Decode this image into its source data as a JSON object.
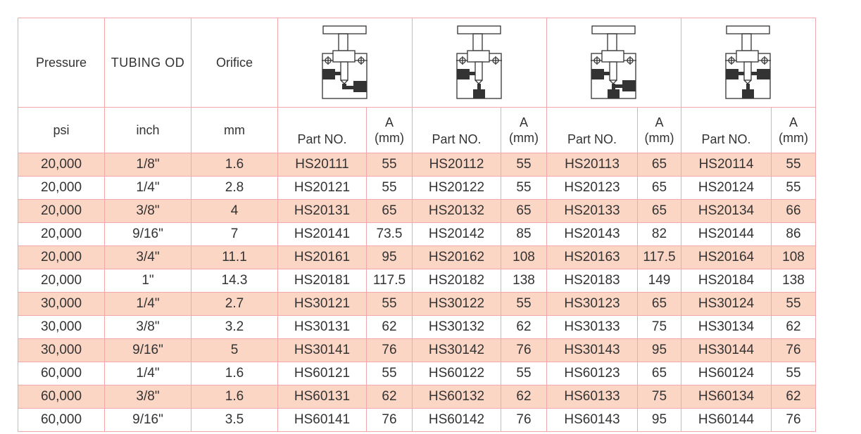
{
  "header": {
    "pressure": "Pressure",
    "tubing": "TUBING OD",
    "orifice": "Orifice",
    "part_no": "Part NO.",
    "a_label": "A",
    "a_unit": "(mm)",
    "units": [
      "psi",
      "inch",
      "mm"
    ]
  },
  "valve_icons": [
    "needle-valve-angle-pattern-icon",
    "needle-valve-straight-bottom-icon",
    "needle-valve-three-way-icon",
    "needle-valve-cross-pattern-icon"
  ],
  "colors": {
    "border": "#f3a7aa",
    "shaded_row": "#fcd6c5"
  },
  "rows": [
    [
      "20,000",
      "1/8\"",
      "1.6",
      "HS20111",
      "55",
      "HS20112",
      "55",
      "HS20113",
      "65",
      "HS20114",
      "55"
    ],
    [
      "20,000",
      "1/4\"",
      "2.8",
      "HS20121",
      "55",
      "HS20122",
      "55",
      "HS20123",
      "65",
      "HS20124",
      "55"
    ],
    [
      "20,000",
      "3/8\"",
      "4",
      "HS20131",
      "65",
      "HS20132",
      "65",
      "HS20133",
      "65",
      "HS20134",
      "66"
    ],
    [
      "20,000",
      "9/16\"",
      "7",
      "HS20141",
      "73.5",
      "HS20142",
      "85",
      "HS20143",
      "82",
      "HS20144",
      "86"
    ],
    [
      "20,000",
      "3/4\"",
      "11.1",
      "HS20161",
      "95",
      "HS20162",
      "108",
      "HS20163",
      "117.5",
      "HS20164",
      "108"
    ],
    [
      "20,000",
      "1\"",
      "14.3",
      "HS20181",
      "117.5",
      "HS20182",
      "138",
      "HS20183",
      "149",
      "HS20184",
      "138"
    ],
    [
      "30,000",
      "1/4\"",
      "2.7",
      "HS30121",
      "55",
      "HS30122",
      "55",
      "HS30123",
      "65",
      "HS30124",
      "55"
    ],
    [
      "30,000",
      "3/8\"",
      "3.2",
      "HS30131",
      "62",
      "HS30132",
      "62",
      "HS30133",
      "75",
      "HS30134",
      "62"
    ],
    [
      "30,000",
      "9/16\"",
      "5",
      "HS30141",
      "76",
      "HS30142",
      "76",
      "HS30143",
      "95",
      "HS30144",
      "76"
    ],
    [
      "60,000",
      "1/4\"",
      "1.6",
      "HS60121",
      "55",
      "HS60122",
      "55",
      "HS60123",
      "65",
      "HS60124",
      "55"
    ],
    [
      "60,000",
      "3/8\"",
      "1.6",
      "HS60131",
      "62",
      "HS60132",
      "62",
      "HS60133",
      "75",
      "HS60134",
      "62"
    ],
    [
      "60,000",
      "9/16\"",
      "3.5",
      "HS60141",
      "76",
      "HS60142",
      "76",
      "HS60143",
      "95",
      "HS60144",
      "76"
    ]
  ]
}
